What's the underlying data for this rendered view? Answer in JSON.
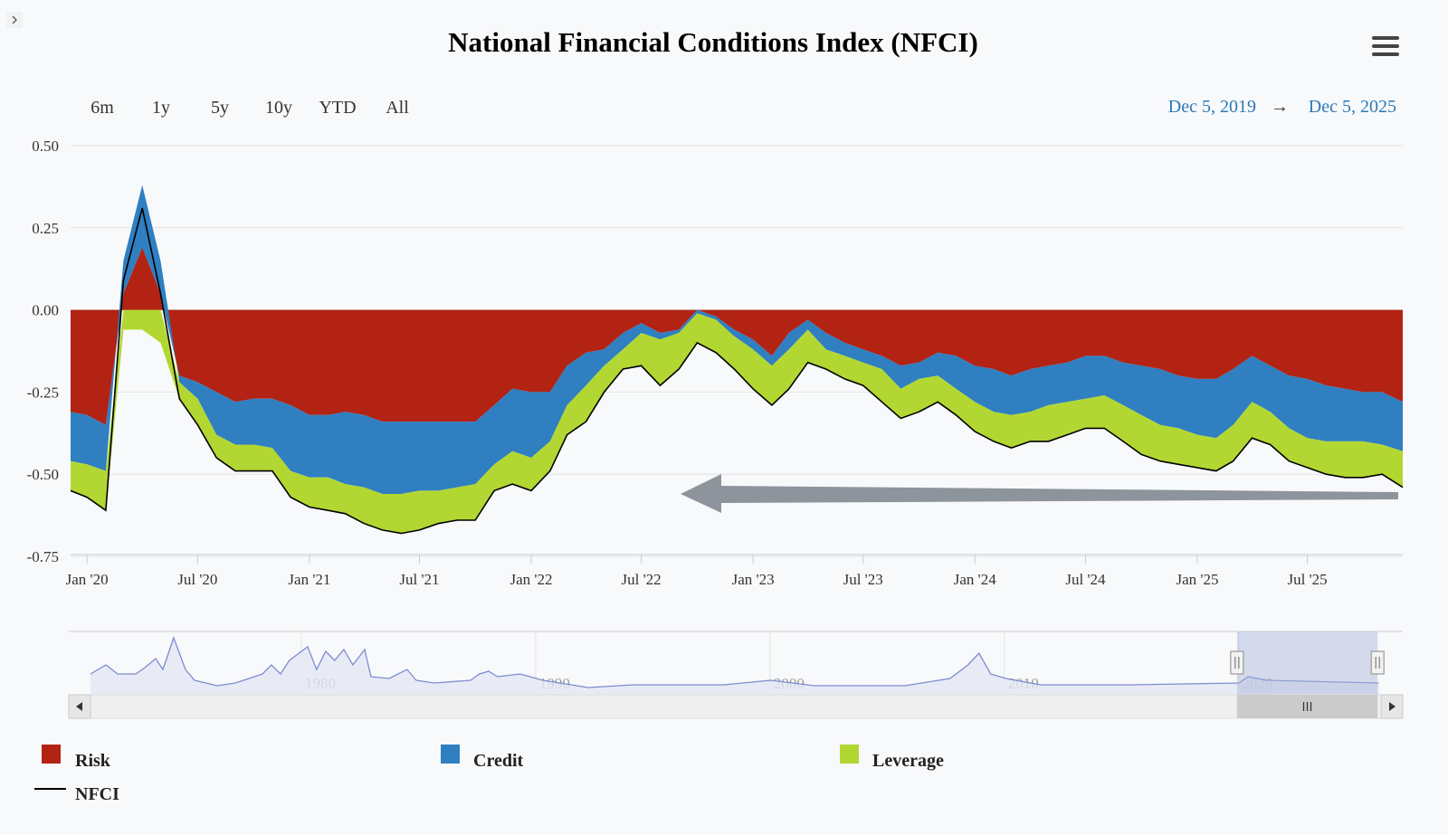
{
  "title": "National Financial Conditions Index (NFCI)",
  "sidebar_toggle_icon": "chevron-right-icon",
  "menu_icon": "hamburger-menu-icon",
  "range_buttons": [
    "6m",
    "1y",
    "5y",
    "10y",
    "YTD",
    "All"
  ],
  "date_range": {
    "from": "Dec 5, 2019",
    "arrow": "→",
    "to": "Dec 5, 2025"
  },
  "colors": {
    "Risk": "#b22314",
    "Credit": "#2f7fc1",
    "Leverage": "#b2d732",
    "NFCI": "#000000",
    "navigator_line": "#7e8ccf",
    "annotation_arrow": "#8e949c"
  },
  "chart_data": {
    "type": "area",
    "stacked": true,
    "ylim": [
      -0.75,
      0.5
    ],
    "yticks": [
      "0.50",
      "0.25",
      "0.00",
      "-0.25",
      "-0.50",
      "-0.75"
    ],
    "ytick_values": [
      0.5,
      0.25,
      0,
      -0.25,
      -0.5,
      -0.75
    ],
    "xlim": [
      "2019-12-05",
      "2025-12-05"
    ],
    "xticks": [
      {
        "date": "2020-01-01",
        "label": "Jan '20"
      },
      {
        "date": "2020-07-01",
        "label": "Jul '20"
      },
      {
        "date": "2021-01-01",
        "label": "Jan '21"
      },
      {
        "date": "2021-07-01",
        "label": "Jul '21"
      },
      {
        "date": "2022-01-01",
        "label": "Jan '22"
      },
      {
        "date": "2022-07-01",
        "label": "Jul '22"
      },
      {
        "date": "2023-01-01",
        "label": "Jan '23"
      },
      {
        "date": "2023-07-01",
        "label": "Jul '23"
      },
      {
        "date": "2024-01-01",
        "label": "Jan '24"
      },
      {
        "date": "2024-07-01",
        "label": "Jul '24"
      },
      {
        "date": "2025-01-01",
        "label": "Jan '25"
      },
      {
        "date": "2025-07-01",
        "label": "Jul '25"
      }
    ],
    "grid": true,
    "legend": "bottom",
    "legend_entries": [
      "Risk",
      "Credit",
      "Leverage",
      "NFCI"
    ],
    "columns": [
      "date",
      "Risk",
      "Credit",
      "Leverage",
      "NFCI"
    ],
    "rows": [
      [
        "2019-12-05",
        -0.31,
        -0.15,
        -0.09,
        -0.55
      ],
      [
        "2020-01-01",
        -0.32,
        -0.15,
        -0.1,
        -0.57
      ],
      [
        "2020-02-01",
        -0.35,
        -0.14,
        -0.12,
        -0.61
      ],
      [
        "2020-03-01",
        0.05,
        0.1,
        -0.06,
        0.09
      ],
      [
        "2020-04-01",
        0.19,
        0.19,
        -0.06,
        0.31
      ],
      [
        "2020-05-01",
        0.05,
        0.1,
        -0.1,
        0.05
      ],
      [
        "2020-06-01",
        -0.2,
        -0.02,
        -0.05,
        -0.27
      ],
      [
        "2020-07-01",
        -0.22,
        -0.05,
        -0.08,
        -0.35
      ],
      [
        "2020-08-01",
        -0.25,
        -0.13,
        -0.07,
        -0.45
      ],
      [
        "2020-09-01",
        -0.28,
        -0.13,
        -0.08,
        -0.49
      ],
      [
        "2020-10-01",
        -0.27,
        -0.14,
        -0.08,
        -0.49
      ],
      [
        "2020-11-01",
        -0.27,
        -0.15,
        -0.07,
        -0.49
      ],
      [
        "2020-12-01",
        -0.29,
        -0.2,
        -0.08,
        -0.57
      ],
      [
        "2021-01-01",
        -0.32,
        -0.19,
        -0.09,
        -0.6
      ],
      [
        "2021-02-01",
        -0.32,
        -0.19,
        -0.1,
        -0.61
      ],
      [
        "2021-03-01",
        -0.31,
        -0.22,
        -0.09,
        -0.62
      ],
      [
        "2021-04-01",
        -0.32,
        -0.22,
        -0.11,
        -0.65
      ],
      [
        "2021-05-01",
        -0.34,
        -0.22,
        -0.11,
        -0.67
      ],
      [
        "2021-06-01",
        -0.34,
        -0.22,
        -0.12,
        -0.68
      ],
      [
        "2021-07-01",
        -0.34,
        -0.21,
        -0.12,
        -0.67
      ],
      [
        "2021-08-01",
        -0.34,
        -0.21,
        -0.1,
        -0.65
      ],
      [
        "2021-09-01",
        -0.34,
        -0.2,
        -0.1,
        -0.64
      ],
      [
        "2021-10-01",
        -0.34,
        -0.19,
        -0.11,
        -0.64
      ],
      [
        "2021-11-01",
        -0.29,
        -0.18,
        -0.08,
        -0.55
      ],
      [
        "2021-12-01",
        -0.24,
        -0.19,
        -0.1,
        -0.53
      ],
      [
        "2022-01-01",
        -0.25,
        -0.2,
        -0.1,
        -0.55
      ],
      [
        "2022-02-01",
        -0.25,
        -0.15,
        -0.09,
        -0.49
      ],
      [
        "2022-03-01",
        -0.17,
        -0.12,
        -0.09,
        -0.38
      ],
      [
        "2022-04-01",
        -0.13,
        -0.1,
        -0.11,
        -0.34
      ],
      [
        "2022-05-01",
        -0.12,
        -0.05,
        -0.08,
        -0.25
      ],
      [
        "2022-06-01",
        -0.07,
        -0.05,
        -0.06,
        -0.18
      ],
      [
        "2022-07-01",
        -0.04,
        -0.03,
        -0.1,
        -0.17
      ],
      [
        "2022-08-01",
        -0.07,
        -0.02,
        -0.14,
        -0.23
      ],
      [
        "2022-09-01",
        -0.06,
        -0.01,
        -0.11,
        -0.18
      ],
      [
        "2022-10-01",
        0.0,
        -0.01,
        -0.09,
        -0.1
      ],
      [
        "2022-11-01",
        -0.02,
        -0.01,
        -0.1,
        -0.13
      ],
      [
        "2022-12-01",
        -0.06,
        -0.02,
        -0.1,
        -0.18
      ],
      [
        "2023-01-01",
        -0.09,
        -0.03,
        -0.12,
        -0.24
      ],
      [
        "2023-02-01",
        -0.14,
        -0.03,
        -0.12,
        -0.29
      ],
      [
        "2023-03-01",
        -0.07,
        -0.05,
        -0.12,
        -0.24
      ],
      [
        "2023-04-01",
        -0.03,
        -0.03,
        -0.1,
        -0.16
      ],
      [
        "2023-05-01",
        -0.07,
        -0.05,
        -0.06,
        -0.18
      ],
      [
        "2023-06-01",
        -0.1,
        -0.04,
        -0.07,
        -0.21
      ],
      [
        "2023-07-01",
        -0.12,
        -0.04,
        -0.07,
        -0.23
      ],
      [
        "2023-08-01",
        -0.14,
        -0.04,
        -0.1,
        -0.28
      ],
      [
        "2023-09-01",
        -0.17,
        -0.07,
        -0.09,
        -0.33
      ],
      [
        "2023-10-01",
        -0.16,
        -0.05,
        -0.1,
        -0.31
      ],
      [
        "2023-11-01",
        -0.13,
        -0.07,
        -0.08,
        -0.28
      ],
      [
        "2023-12-01",
        -0.14,
        -0.1,
        -0.08,
        -0.32
      ],
      [
        "2024-01-01",
        -0.17,
        -0.11,
        -0.09,
        -0.37
      ],
      [
        "2024-02-01",
        -0.18,
        -0.13,
        -0.09,
        -0.4
      ],
      [
        "2024-03-01",
        -0.2,
        -0.12,
        -0.1,
        -0.42
      ],
      [
        "2024-04-01",
        -0.18,
        -0.13,
        -0.09,
        -0.4
      ],
      [
        "2024-05-01",
        -0.17,
        -0.12,
        -0.11,
        -0.4
      ],
      [
        "2024-06-01",
        -0.16,
        -0.12,
        -0.1,
        -0.38
      ],
      [
        "2024-07-01",
        -0.14,
        -0.13,
        -0.09,
        -0.36
      ],
      [
        "2024-08-01",
        -0.14,
        -0.12,
        -0.1,
        -0.36
      ],
      [
        "2024-09-01",
        -0.16,
        -0.13,
        -0.11,
        -0.4
      ],
      [
        "2024-10-01",
        -0.17,
        -0.15,
        -0.12,
        -0.44
      ],
      [
        "2024-11-01",
        -0.18,
        -0.17,
        -0.11,
        -0.46
      ],
      [
        "2024-12-01",
        -0.2,
        -0.16,
        -0.11,
        -0.47
      ],
      [
        "2025-01-01",
        -0.21,
        -0.17,
        -0.1,
        -0.48
      ],
      [
        "2025-02-01",
        -0.21,
        -0.18,
        -0.1,
        -0.49
      ],
      [
        "2025-03-01",
        -0.18,
        -0.17,
        -0.11,
        -0.46
      ],
      [
        "2025-04-01",
        -0.14,
        -0.14,
        -0.11,
        -0.39
      ],
      [
        "2025-05-01",
        -0.17,
        -0.14,
        -0.1,
        -0.41
      ],
      [
        "2025-06-01",
        -0.2,
        -0.16,
        -0.1,
        -0.46
      ],
      [
        "2025-07-01",
        -0.21,
        -0.18,
        -0.09,
        -0.48
      ],
      [
        "2025-08-01",
        -0.23,
        -0.17,
        -0.1,
        -0.5
      ],
      [
        "2025-09-01",
        -0.24,
        -0.16,
        -0.11,
        -0.51
      ],
      [
        "2025-10-01",
        -0.25,
        -0.15,
        -0.11,
        -0.51
      ],
      [
        "2025-11-01",
        -0.25,
        -0.16,
        -0.09,
        -0.5
      ],
      [
        "2025-12-05",
        -0.28,
        -0.15,
        -0.11,
        -0.54
      ]
    ],
    "navigator": {
      "xticks": [
        "1980",
        "1990",
        "2000",
        "2010",
        "2020"
      ],
      "xlim": [
        1971,
        2026
      ],
      "selected_range": [
        "2019-12-05",
        "2025-12-05"
      ],
      "points": [
        [
          1971.0,
          0.58
        ],
        [
          1971.66,
          1.42
        ],
        [
          1972.16,
          0.58
        ],
        [
          1972.93,
          0.58
        ],
        [
          1973.32,
          1.17
        ],
        [
          1973.78,
          2.0
        ],
        [
          1974.09,
          1.0
        ],
        [
          1974.55,
          3.92
        ],
        [
          1975.05,
          1.0
        ],
        [
          1975.44,
          0.0
        ],
        [
          1976.41,
          -0.5
        ],
        [
          1977.18,
          -0.25
        ],
        [
          1978.34,
          0.58
        ],
        [
          1978.72,
          1.42
        ],
        [
          1979.11,
          0.58
        ],
        [
          1979.49,
          1.83
        ],
        [
          1980.0,
          2.67
        ],
        [
          1980.27,
          3.08
        ],
        [
          1980.65,
          1.0
        ],
        [
          1981.04,
          2.67
        ],
        [
          1981.42,
          1.83
        ],
        [
          1981.81,
          2.83
        ],
        [
          1982.2,
          1.42
        ],
        [
          1982.7,
          2.83
        ],
        [
          1982.97,
          0.33
        ],
        [
          1983.74,
          0.17
        ],
        [
          1984.51,
          1.0
        ],
        [
          1984.9,
          0.0
        ],
        [
          1985.67,
          -0.25
        ],
        [
          1987.22,
          0.0
        ],
        [
          1987.6,
          0.58
        ],
        [
          1987.99,
          0.83
        ],
        [
          1988.37,
          0.33
        ],
        [
          1989.34,
          0.58
        ],
        [
          1990.31,
          0.0
        ],
        [
          1992.24,
          -0.67
        ],
        [
          1994.17,
          -0.42
        ],
        [
          1998.03,
          -0.42
        ],
        [
          2000.03,
          0.0
        ],
        [
          2001.89,
          -0.5
        ],
        [
          2005.75,
          -0.5
        ],
        [
          2007.68,
          0.17
        ],
        [
          2008.45,
          1.42
        ],
        [
          2008.92,
          2.5
        ],
        [
          2009.42,
          0.58
        ],
        [
          2010.07,
          0.17
        ],
        [
          2011.54,
          -0.42
        ],
        [
          2015.4,
          -0.42
        ],
        [
          2020.03,
          -0.25
        ],
        [
          2020.4,
          0.33
        ],
        [
          2021.19,
          0.0
        ],
        [
          2025.98,
          -0.25
        ]
      ]
    }
  }
}
